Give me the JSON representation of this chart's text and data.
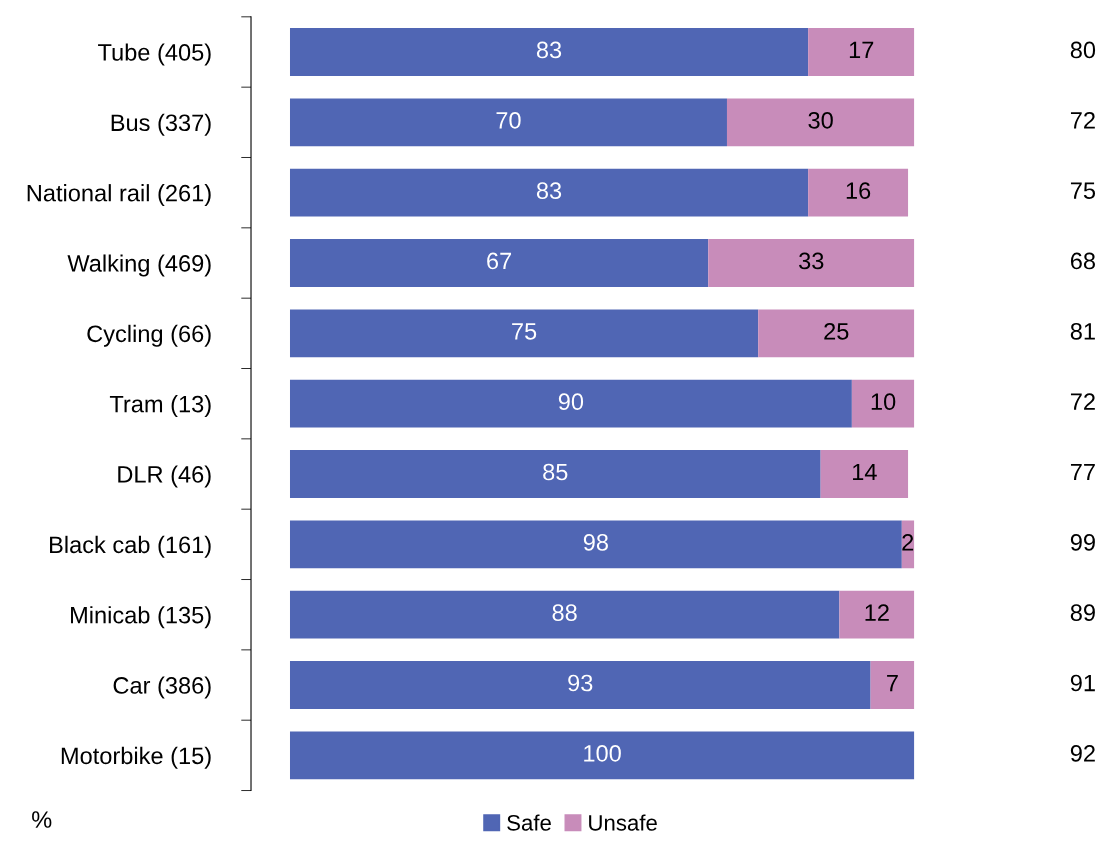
{
  "chart_data": {
    "type": "bar",
    "orientation": "horizontal",
    "stacked": true,
    "data_labels": true,
    "categories": [
      "Tube (405)",
      "Bus (337)",
      "National rail (261)",
      "Walking (469)",
      "Cycling (66)",
      "Tram (13)",
      "DLR (46)",
      "Black cab (161)",
      "Minicab (135)",
      "Car (386)",
      "Motorbike (15)"
    ],
    "series": [
      {
        "name": "Safe",
        "color": "#5066b4",
        "values": [
          83,
          70,
          83,
          67,
          75,
          90,
          85,
          98,
          88,
          93,
          100
        ]
      },
      {
        "name": "Unsafe",
        "color": "#c88cba",
        "values": [
          17,
          30,
          16,
          33,
          25,
          10,
          14,
          2,
          12,
          7,
          null
        ]
      }
    ],
    "xlim": [
      0,
      100
    ],
    "tick_labels": "y",
    "grid": false,
    "legend": "bottom",
    "annotations": [
      "80",
      "72",
      "75",
      "68",
      "81",
      "72",
      "77",
      "99",
      "89",
      "91",
      "92",
      "%"
    ]
  }
}
